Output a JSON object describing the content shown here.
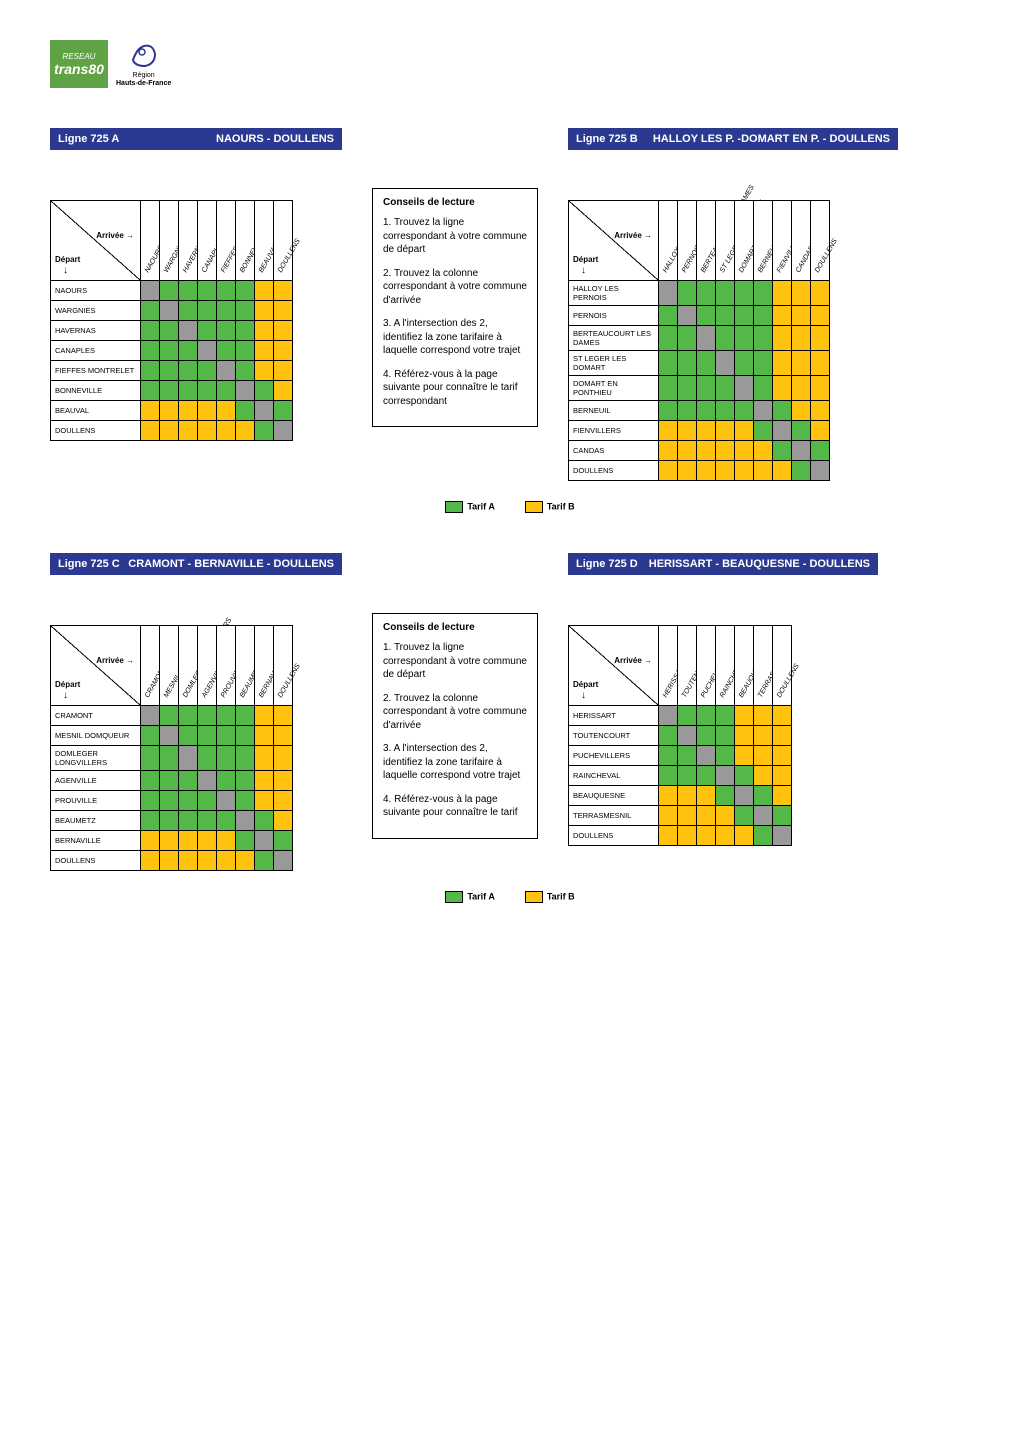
{
  "logo": {
    "line1": "RESEAU",
    "line2": "trans",
    "line3": "80",
    "region": "Hauts-de-France"
  },
  "colors": {
    "header": "#2b3990",
    "tarifA": "#53b848",
    "tarifB": "#ffc20e",
    "diag": "#999999",
    "white": "#ffffff"
  },
  "labels": {
    "depart": "Départ",
    "arrivee": "Arrivée →",
    "tarifA": "Tarif  A",
    "tarifB": "Tarif B"
  },
  "conseils": {
    "title": "Conseils de lecture",
    "steps": [
      "1. Trouvez la ligne correspondant à votre commune de départ",
      "2. Trouvez la colonne correspondant à votre commune d'arrivée",
      "3. A l'intersection des 2, identifiez la zone tarifaire à laquelle correspond votre trajet",
      "4. Référez-vous à la page suivante pour connaître le tarif correspondant"
    ]
  },
  "conseils2": {
    "title": "Conseils de lecture",
    "steps": [
      "1. Trouvez la ligne correspondant à votre commune de départ",
      "2. Trouvez la colonne correspondant à votre commune d'arrivée",
      "3. A l'intersection des 2, identifiez la zone tarifaire à laquelle correspond votre trajet",
      "4. Référez-vous à la page suivante pour connaître le tarif"
    ]
  },
  "tables": [
    {
      "line": "Ligne 725 A",
      "route": "NAOURS - DOULLENS",
      "cols": [
        "NAOURS",
        "WARGNIES",
        "HAVERNAS",
        "CANAPLES",
        "FIEFFES MONTRELET",
        "BONNEVILLE",
        "BEAUVAL",
        "DOULLENS"
      ],
      "rows": [
        "NAOURS",
        "WARGNIES",
        "HAVERNAS",
        "CANAPLES",
        "FIEFFES MONTRELET",
        "BONNEVILLE",
        "BEAUVAL",
        "DOULLENS"
      ],
      "grid": [
        [
          "D",
          "A",
          "A",
          "A",
          "A",
          "A",
          "B",
          "B"
        ],
        [
          "A",
          "D",
          "A",
          "A",
          "A",
          "A",
          "B",
          "B"
        ],
        [
          "A",
          "A",
          "D",
          "A",
          "A",
          "A",
          "B",
          "B"
        ],
        [
          "A",
          "A",
          "A",
          "D",
          "A",
          "A",
          "B",
          "B"
        ],
        [
          "A",
          "A",
          "A",
          "A",
          "D",
          "A",
          "B",
          "B"
        ],
        [
          "A",
          "A",
          "A",
          "A",
          "A",
          "D",
          "A",
          "B"
        ],
        [
          "B",
          "B",
          "B",
          "B",
          "B",
          "A",
          "D",
          "A"
        ],
        [
          "B",
          "B",
          "B",
          "B",
          "B",
          "B",
          "A",
          "D"
        ]
      ]
    },
    {
      "line": "Ligne 725 B",
      "route": "HALLOY LES P. -DOMART EN P. - DOULLENS",
      "cols": [
        "HALLOY LES PERNOIS",
        "PERNOIS",
        "BERTEAUCOURT LES DAMES",
        "ST LEGER LES DOMART",
        "DOMART EN PONTHIEU",
        "BERNEUIL",
        "FIENVILLERS",
        "CANDAS",
        "DOULLENS"
      ],
      "rows": [
        "HALLOY LES PERNOIS",
        "PERNOIS",
        "BERTEAUCOURT LES DAMES",
        "ST LEGER LES DOMART",
        "DOMART EN PONTHIEU",
        "BERNEUIL",
        "FIENVILLERS",
        "CANDAS",
        "DOULLENS"
      ],
      "grid": [
        [
          "D",
          "A",
          "A",
          "A",
          "A",
          "A",
          "B",
          "B",
          "B"
        ],
        [
          "A",
          "D",
          "A",
          "A",
          "A",
          "A",
          "B",
          "B",
          "B"
        ],
        [
          "A",
          "A",
          "D",
          "A",
          "A",
          "A",
          "B",
          "B",
          "B"
        ],
        [
          "A",
          "A",
          "A",
          "D",
          "A",
          "A",
          "B",
          "B",
          "B"
        ],
        [
          "A",
          "A",
          "A",
          "A",
          "D",
          "A",
          "B",
          "B",
          "B"
        ],
        [
          "A",
          "A",
          "A",
          "A",
          "A",
          "D",
          "A",
          "B",
          "B"
        ],
        [
          "B",
          "B",
          "B",
          "B",
          "B",
          "A",
          "D",
          "A",
          "B"
        ],
        [
          "B",
          "B",
          "B",
          "B",
          "B",
          "B",
          "A",
          "D",
          "A"
        ],
        [
          "B",
          "B",
          "B",
          "B",
          "B",
          "B",
          "B",
          "A",
          "D"
        ]
      ]
    },
    {
      "line": "Ligne 725 C",
      "route": "CRAMONT - BERNAVILLE - DOULLENS",
      "cols": [
        "CRAMONT",
        "MESNIL DOMQUEUR",
        "DOMLEGER LONGVILLERS",
        "AGENVILLE",
        "PROUVILLE",
        "BEAUMETZ",
        "BERNAVILLE",
        "DOULLENS"
      ],
      "rows": [
        "CRAMONT",
        "MESNIL DOMQUEUR",
        "DOMLEGER LONGVILLERS",
        "AGENVILLE",
        "PROUVILLE",
        "BEAUMETZ",
        "BERNAVILLE",
        "DOULLENS"
      ],
      "grid": [
        [
          "D",
          "A",
          "A",
          "A",
          "A",
          "A",
          "B",
          "B"
        ],
        [
          "A",
          "D",
          "A",
          "A",
          "A",
          "A",
          "B",
          "B"
        ],
        [
          "A",
          "A",
          "D",
          "A",
          "A",
          "A",
          "B",
          "B"
        ],
        [
          "A",
          "A",
          "A",
          "D",
          "A",
          "A",
          "B",
          "B"
        ],
        [
          "A",
          "A",
          "A",
          "A",
          "D",
          "A",
          "B",
          "B"
        ],
        [
          "A",
          "A",
          "A",
          "A",
          "A",
          "D",
          "A",
          "B"
        ],
        [
          "B",
          "B",
          "B",
          "B",
          "B",
          "A",
          "D",
          "A"
        ],
        [
          "B",
          "B",
          "B",
          "B",
          "B",
          "B",
          "A",
          "D"
        ]
      ]
    },
    {
      "line": "Ligne 725 D",
      "route": "HERISSART - BEAUQUESNE - DOULLENS",
      "cols": [
        "HERISSART",
        "TOUTENCOURT",
        "PUCHEVILLERS",
        "RAINCHEVAL",
        "BEAUQUESNE",
        "TERRASMESNIL",
        "DOULLENS"
      ],
      "rows": [
        "HERISSART",
        "TOUTENCOURT",
        "PUCHEVILLERS",
        "RAINCHEVAL",
        "BEAUQUESNE",
        "TERRASMESNIL",
        "DOULLENS"
      ],
      "grid": [
        [
          "D",
          "A",
          "A",
          "A",
          "B",
          "B",
          "B"
        ],
        [
          "A",
          "D",
          "A",
          "A",
          "B",
          "B",
          "B"
        ],
        [
          "A",
          "A",
          "D",
          "A",
          "B",
          "B",
          "B"
        ],
        [
          "A",
          "A",
          "A",
          "D",
          "A",
          "B",
          "B"
        ],
        [
          "B",
          "B",
          "B",
          "A",
          "D",
          "A",
          "B"
        ],
        [
          "B",
          "B",
          "B",
          "B",
          "A",
          "D",
          "A"
        ],
        [
          "B",
          "B",
          "B",
          "B",
          "B",
          "A",
          "D"
        ]
      ]
    }
  ]
}
